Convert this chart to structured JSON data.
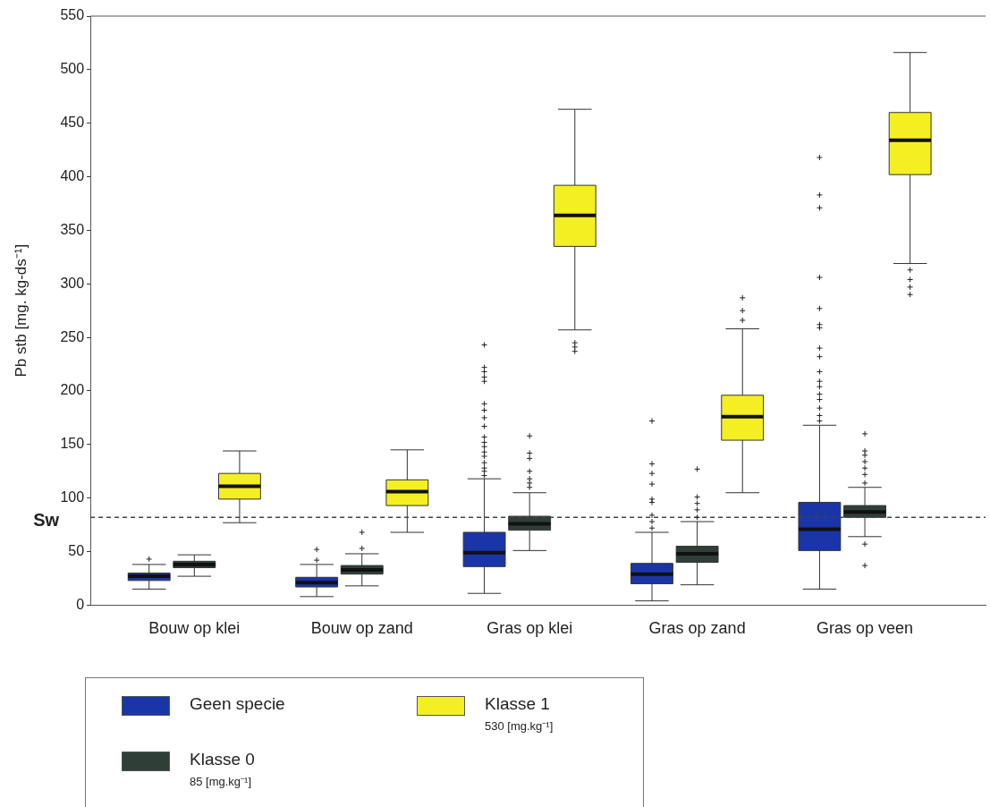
{
  "chart_data": {
    "type": "box",
    "ylabel": "Pb stb [mg. kg-ds⁻¹]",
    "categories": [
      "Bouw op klei",
      "Bouw op zand",
      "Gras op klei",
      "Gras op zand",
      "Gras op veen"
    ],
    "ylim": [
      0,
      550
    ],
    "yticks": [
      0,
      50,
      100,
      150,
      200,
      250,
      300,
      350,
      400,
      450,
      500,
      550
    ],
    "grid": false,
    "legend": "bottom",
    "marker": "cross",
    "ref_lines": [
      {
        "axis": "y",
        "value": 82,
        "label": "Sw",
        "line_style": "dashed"
      }
    ],
    "annotations": [
      "85 [mg.kg⁻¹]",
      "530 [mg.kg⁻¹]"
    ],
    "series": [
      {
        "name": "Geen specie",
        "color": "#1a35a8",
        "boxes": [
          {
            "low": 15,
            "q1": 23,
            "median": 27,
            "q3": 30,
            "high": 38,
            "outliers": [
              43
            ]
          },
          {
            "low": 8,
            "q1": 17,
            "median": 21,
            "q3": 26,
            "high": 38,
            "outliers": [
              42,
              52
            ]
          },
          {
            "low": 11,
            "q1": 36,
            "median": 49,
            "q3": 68,
            "high": 118,
            "outliers": [
              121,
              125,
              128,
              133,
              139,
              143,
              148,
              152,
              157,
              167,
              175,
              182,
              188,
              209,
              213,
              218,
              222,
              243
            ]
          },
          {
            "low": 4,
            "q1": 20,
            "median": 29,
            "q3": 39,
            "high": 68,
            "outliers": [
              72,
              78,
              84,
              96,
              99,
              113,
              123,
              132,
              172
            ]
          },
          {
            "low": 15,
            "q1": 51,
            "median": 71,
            "q3": 96,
            "high": 168,
            "outliers": [
              172,
              177,
              184,
              192,
              197,
              204,
              209,
              218,
              232,
              240,
              259,
              262,
              277,
              306,
              371,
              383,
              418
            ]
          }
        ]
      },
      {
        "name": "Klasse 0",
        "color": "#2e3f38",
        "boxes": [
          {
            "low": 27,
            "q1": 35,
            "median": 38,
            "q3": 41,
            "high": 47
          },
          {
            "low": 18,
            "q1": 29,
            "median": 33,
            "q3": 37,
            "high": 48,
            "outliers": [
              53,
              68
            ]
          },
          {
            "low": 51,
            "q1": 70,
            "median": 76,
            "q3": 83,
            "high": 105,
            "outliers": [
              110,
              114,
              118,
              125,
              137,
              142,
              158
            ]
          },
          {
            "low": 19,
            "q1": 40,
            "median": 48,
            "q3": 55,
            "high": 78,
            "outliers": [
              82,
              89,
              95,
              101,
              127
            ]
          },
          {
            "low": 64,
            "q1": 82,
            "median": 87,
            "q3": 93,
            "high": 110,
            "outliers": [
              37,
              57,
              114,
              122,
              128,
              134,
              140,
              144,
              160
            ]
          }
        ]
      },
      {
        "name": "Klasse 1",
        "color": "#f4ef22",
        "boxes": [
          {
            "low": 77,
            "q1": 99,
            "median": 111,
            "q3": 123,
            "high": 144
          },
          {
            "low": 68,
            "q1": 93,
            "median": 106,
            "q3": 117,
            "high": 145
          },
          {
            "low": 257,
            "q1": 335,
            "median": 364,
            "q3": 392,
            "high": 463,
            "outliers": [
              237,
              241,
              245
            ]
          },
          {
            "low": 105,
            "q1": 154,
            "median": 176,
            "q3": 196,
            "high": 258,
            "outliers": [
              266,
              275,
              287
            ]
          },
          {
            "low": 319,
            "q1": 402,
            "median": 434,
            "q3": 460,
            "high": 516,
            "outliers": [
              290,
              297,
              304,
              313
            ]
          }
        ]
      }
    ]
  }
}
